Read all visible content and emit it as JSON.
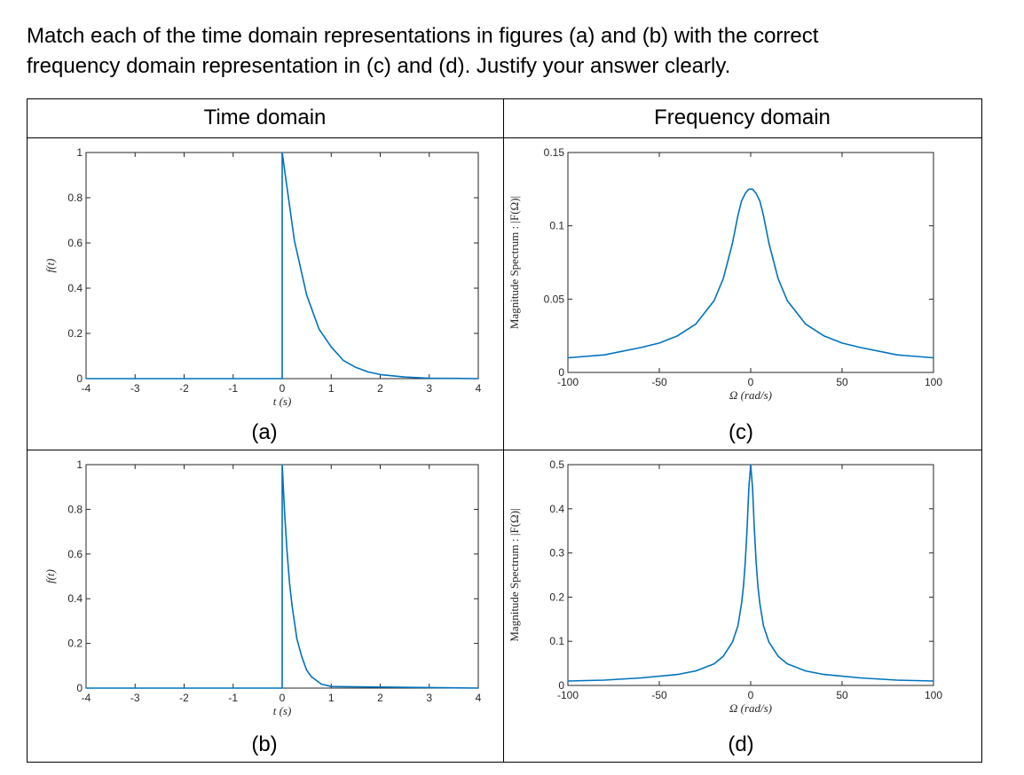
{
  "question": {
    "line1": "Match each of the time domain representations in figures (a) and (b) with the correct",
    "line2": "frequency domain representation in (c) and (d). Justify your answer clearly."
  },
  "table": {
    "header_left": "Time domain",
    "header_right": "Frequency domain"
  },
  "line_color": "#0072BD",
  "chart_data": [
    {
      "id": "a",
      "type": "line",
      "caption": "(a)",
      "title": "",
      "xlabel": "t (s)",
      "ylabel": "f(t)",
      "xlim": [
        -4,
        4
      ],
      "ylim": [
        0,
        1
      ],
      "xticks": [
        -4,
        -3,
        -2,
        -1,
        0,
        1,
        2,
        3,
        4
      ],
      "yticks": [
        0,
        0.2,
        0.4,
        0.6,
        0.8,
        1
      ],
      "ytick_labels": [
        "0",
        "0.2",
        "0.4",
        "0.6",
        "0.8",
        "1"
      ],
      "xtick_labels": [
        "-4",
        "-3",
        "-2",
        "-1",
        "0",
        "1",
        "2",
        "3",
        "4"
      ],
      "series": [
        {
          "x": [
            -4,
            0,
            0,
            0.25,
            0.5,
            0.75,
            1,
            1.25,
            1.5,
            1.75,
            2,
            2.5,
            3,
            3.5,
            4
          ],
          "y": [
            0,
            0,
            1,
            0.61,
            0.37,
            0.22,
            0.14,
            0.08,
            0.05,
            0.03,
            0.018,
            0.007,
            0.002,
            0.001,
            0
          ]
        }
      ]
    },
    {
      "id": "c",
      "type": "line",
      "caption": "(c)",
      "title": "",
      "xlabel": "Ω (rad/s)",
      "ylabel": "Magnitude Spectrum : |F(Ω)|",
      "xlim": [
        -100,
        100
      ],
      "ylim": [
        0,
        0.15
      ],
      "xticks": [
        -100,
        -50,
        0,
        50,
        100
      ],
      "yticks": [
        0,
        0.05,
        0.1,
        0.15
      ],
      "ytick_labels": [
        "0",
        "0.05",
        "0.1",
        "0.15"
      ],
      "xtick_labels": [
        "-100",
        "-50",
        "0",
        "50",
        "100"
      ],
      "series": [
        {
          "x": [
            -100,
            -80,
            -60,
            -50,
            -40,
            -30,
            -20,
            -15,
            -10,
            -7,
            -5,
            -3,
            -1,
            0,
            1,
            3,
            5,
            7,
            10,
            15,
            20,
            30,
            40,
            50,
            60,
            80,
            100
          ],
          "y": [
            0.01,
            0.012,
            0.017,
            0.02,
            0.025,
            0.033,
            0.049,
            0.064,
            0.088,
            0.107,
            0.117,
            0.122,
            0.125,
            0.125,
            0.125,
            0.122,
            0.117,
            0.107,
            0.088,
            0.064,
            0.049,
            0.033,
            0.025,
            0.02,
            0.017,
            0.012,
            0.01
          ]
        }
      ]
    },
    {
      "id": "b",
      "type": "line",
      "caption": "(b)",
      "title": "",
      "xlabel": "t (s)",
      "ylabel": "f(t)",
      "xlim": [
        -4,
        4
      ],
      "ylim": [
        0,
        1
      ],
      "xticks": [
        -4,
        -3,
        -2,
        -1,
        0,
        1,
        2,
        3,
        4
      ],
      "yticks": [
        0,
        0.2,
        0.4,
        0.6,
        0.8,
        1
      ],
      "ytick_labels": [
        "0",
        "0.2",
        "0.4",
        "0.6",
        "0.8",
        "1"
      ],
      "xtick_labels": [
        "-4",
        "-3",
        "-2",
        "-1",
        "0",
        "1",
        "2",
        "3",
        "4"
      ],
      "series": [
        {
          "x": [
            -4,
            0,
            0,
            0.05,
            0.1,
            0.15,
            0.2,
            0.3,
            0.4,
            0.5,
            0.6,
            0.8,
            1,
            4
          ],
          "y": [
            0,
            0,
            1,
            0.78,
            0.61,
            0.47,
            0.37,
            0.22,
            0.14,
            0.08,
            0.05,
            0.018,
            0.007,
            0
          ]
        }
      ]
    },
    {
      "id": "d",
      "type": "line",
      "caption": "(d)",
      "title": "",
      "xlabel": "Ω (rad/s)",
      "ylabel": "Magnitude Spectrum : |F(Ω)|",
      "xlim": [
        -100,
        100
      ],
      "ylim": [
        0,
        0.5
      ],
      "xticks": [
        -100,
        -50,
        0,
        50,
        100
      ],
      "yticks": [
        0,
        0.1,
        0.2,
        0.3,
        0.4,
        0.5
      ],
      "ytick_labels": [
        "0",
        "0.1",
        "0.2",
        "0.3",
        "0.4",
        "0.5"
      ],
      "xtick_labels": [
        "-100",
        "-50",
        "0",
        "50",
        "100"
      ],
      "series": [
        {
          "x": [
            -100,
            -80,
            -60,
            -40,
            -30,
            -20,
            -15,
            -10,
            -7,
            -5,
            -4,
            -3,
            -2,
            -1,
            0,
            1,
            2,
            3,
            4,
            5,
            7,
            10,
            15,
            20,
            30,
            40,
            60,
            80,
            100
          ],
          "y": [
            0.01,
            0.012,
            0.017,
            0.025,
            0.033,
            0.049,
            0.066,
            0.098,
            0.135,
            0.186,
            0.223,
            0.277,
            0.354,
            0.447,
            0.5,
            0.447,
            0.354,
            0.277,
            0.223,
            0.186,
            0.135,
            0.098,
            0.066,
            0.049,
            0.033,
            0.025,
            0.017,
            0.012,
            0.01
          ]
        }
      ]
    }
  ]
}
